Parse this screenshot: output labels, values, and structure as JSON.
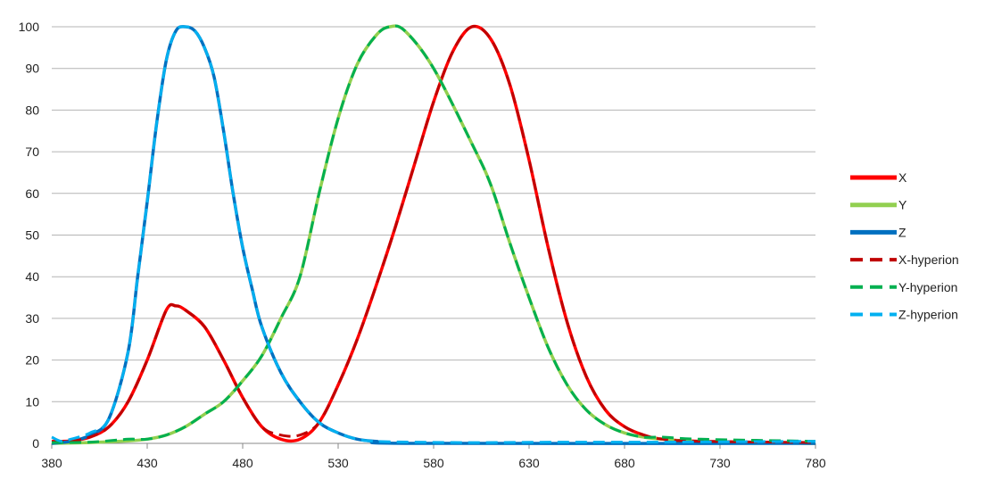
{
  "chart_data": {
    "type": "line",
    "title": "",
    "xlabel": "",
    "ylabel": "",
    "xlim": [
      380,
      780
    ],
    "ylim": [
      0,
      100
    ],
    "x_ticks": [
      380,
      430,
      480,
      530,
      580,
      630,
      680,
      730,
      780
    ],
    "y_ticks": [
      0,
      10,
      20,
      30,
      40,
      50,
      60,
      70,
      80,
      90,
      100
    ],
    "grid": "horizontal",
    "legend_position": "right",
    "series": [
      {
        "name": "X",
        "color": "#ff0000",
        "style": "solid",
        "points": [
          [
            380,
            0.5
          ],
          [
            390,
            0.6
          ],
          [
            400,
            1.5
          ],
          [
            410,
            4
          ],
          [
            420,
            10
          ],
          [
            430,
            20
          ],
          [
            440,
            32
          ],
          [
            445,
            33
          ],
          [
            450,
            32
          ],
          [
            460,
            28
          ],
          [
            470,
            20
          ],
          [
            480,
            11
          ],
          [
            490,
            4
          ],
          [
            500,
            1
          ],
          [
            510,
            1
          ],
          [
            520,
            5
          ],
          [
            530,
            14
          ],
          [
            540,
            25
          ],
          [
            550,
            38
          ],
          [
            560,
            52
          ],
          [
            570,
            67
          ],
          [
            580,
            82
          ],
          [
            590,
            94
          ],
          [
            600,
            100
          ],
          [
            610,
            97
          ],
          [
            620,
            86
          ],
          [
            630,
            68
          ],
          [
            640,
            47
          ],
          [
            650,
            29
          ],
          [
            660,
            16
          ],
          [
            670,
            8
          ],
          [
            680,
            4
          ],
          [
            690,
            2
          ],
          [
            700,
            1
          ],
          [
            720,
            0.5
          ],
          [
            780,
            0
          ]
        ]
      },
      {
        "name": "Y",
        "color": "#92d050",
        "style": "solid",
        "points": [
          [
            380,
            0
          ],
          [
            400,
            0.2
          ],
          [
            420,
            0.6
          ],
          [
            430,
            1
          ],
          [
            440,
            2
          ],
          [
            450,
            4
          ],
          [
            460,
            7
          ],
          [
            470,
            10
          ],
          [
            480,
            15
          ],
          [
            490,
            21
          ],
          [
            500,
            30
          ],
          [
            510,
            40
          ],
          [
            520,
            60
          ],
          [
            530,
            78
          ],
          [
            540,
            91
          ],
          [
            550,
            98
          ],
          [
            557,
            100
          ],
          [
            565,
            99
          ],
          [
            580,
            90
          ],
          [
            600,
            72
          ],
          [
            610,
            62
          ],
          [
            620,
            48
          ],
          [
            630,
            35
          ],
          [
            640,
            23
          ],
          [
            650,
            14
          ],
          [
            660,
            8
          ],
          [
            670,
            4.5
          ],
          [
            680,
            2.5
          ],
          [
            690,
            1.5
          ],
          [
            700,
            1
          ],
          [
            720,
            0.4
          ],
          [
            780,
            0
          ]
        ]
      },
      {
        "name": "Z",
        "color": "#0070c0",
        "style": "solid",
        "points": [
          [
            380,
            0
          ],
          [
            390,
            0.5
          ],
          [
            400,
            2
          ],
          [
            410,
            6
          ],
          [
            420,
            22
          ],
          [
            425,
            40
          ],
          [
            430,
            58
          ],
          [
            435,
            77
          ],
          [
            440,
            92
          ],
          [
            445,
            99
          ],
          [
            450,
            100
          ],
          [
            455,
            99
          ],
          [
            460,
            95
          ],
          [
            465,
            88
          ],
          [
            470,
            75
          ],
          [
            475,
            60
          ],
          [
            480,
            47
          ],
          [
            485,
            37
          ],
          [
            490,
            28
          ],
          [
            500,
            17
          ],
          [
            510,
            10
          ],
          [
            520,
            5
          ],
          [
            530,
            2.5
          ],
          [
            540,
            1
          ],
          [
            550,
            0.5
          ],
          [
            570,
            0
          ],
          [
            780,
            0
          ]
        ]
      },
      {
        "name": "X-hyperion",
        "color": "#c00000",
        "style": "dashed",
        "points": [
          [
            380,
            0.3
          ],
          [
            390,
            0.6
          ],
          [
            400,
            1.5
          ],
          [
            410,
            4
          ],
          [
            420,
            10
          ],
          [
            430,
            20
          ],
          [
            440,
            32
          ],
          [
            445,
            33
          ],
          [
            450,
            32
          ],
          [
            460,
            28
          ],
          [
            470,
            20
          ],
          [
            480,
            11
          ],
          [
            490,
            4
          ],
          [
            500,
            2
          ],
          [
            510,
            2
          ],
          [
            520,
            5
          ],
          [
            530,
            14
          ],
          [
            540,
            25
          ],
          [
            550,
            38
          ],
          [
            560,
            52
          ],
          [
            570,
            67
          ],
          [
            580,
            82
          ],
          [
            590,
            94
          ],
          [
            600,
            100
          ],
          [
            610,
            97
          ],
          [
            620,
            86
          ],
          [
            630,
            68
          ],
          [
            640,
            47
          ],
          [
            650,
            29
          ],
          [
            660,
            16
          ],
          [
            670,
            8
          ],
          [
            680,
            4
          ],
          [
            690,
            2
          ],
          [
            700,
            1
          ],
          [
            720,
            0.5
          ],
          [
            780,
            0.2
          ]
        ]
      },
      {
        "name": "Y-hyperion",
        "color": "#00b050",
        "style": "dashed",
        "points": [
          [
            380,
            0.2
          ],
          [
            400,
            0.3
          ],
          [
            420,
            1
          ],
          [
            430,
            1
          ],
          [
            440,
            2
          ],
          [
            450,
            4
          ],
          [
            460,
            7
          ],
          [
            470,
            10
          ],
          [
            480,
            15
          ],
          [
            490,
            21
          ],
          [
            500,
            30
          ],
          [
            510,
            40
          ],
          [
            520,
            60
          ],
          [
            530,
            78
          ],
          [
            540,
            91
          ],
          [
            550,
            98
          ],
          [
            557,
            100
          ],
          [
            565,
            99
          ],
          [
            580,
            90
          ],
          [
            600,
            72
          ],
          [
            610,
            62
          ],
          [
            620,
            48
          ],
          [
            630,
            35
          ],
          [
            640,
            23
          ],
          [
            650,
            14
          ],
          [
            660,
            8
          ],
          [
            670,
            4.5
          ],
          [
            680,
            2.5
          ],
          [
            690,
            1.5
          ],
          [
            700,
            1.5
          ],
          [
            720,
            1
          ],
          [
            780,
            0.5
          ]
        ]
      },
      {
        "name": "Z-hyperion",
        "color": "#00b0f0",
        "style": "dashed",
        "points": [
          [
            380,
            1.5
          ],
          [
            385,
            0.5
          ],
          [
            390,
            1
          ],
          [
            400,
            2.5
          ],
          [
            410,
            6
          ],
          [
            420,
            22
          ],
          [
            425,
            40
          ],
          [
            430,
            58
          ],
          [
            435,
            77
          ],
          [
            440,
            92
          ],
          [
            445,
            99
          ],
          [
            450,
            100
          ],
          [
            455,
            99
          ],
          [
            460,
            95
          ],
          [
            465,
            88
          ],
          [
            470,
            75
          ],
          [
            475,
            60
          ],
          [
            480,
            47
          ],
          [
            485,
            37
          ],
          [
            490,
            28
          ],
          [
            500,
            17
          ],
          [
            510,
            10
          ],
          [
            520,
            5
          ],
          [
            530,
            2.5
          ],
          [
            540,
            1
          ],
          [
            550,
            0.5
          ],
          [
            570,
            0.3
          ],
          [
            600,
            0.2
          ],
          [
            650,
            0.3
          ],
          [
            700,
            0.3
          ],
          [
            780,
            0.5
          ]
        ]
      }
    ]
  }
}
